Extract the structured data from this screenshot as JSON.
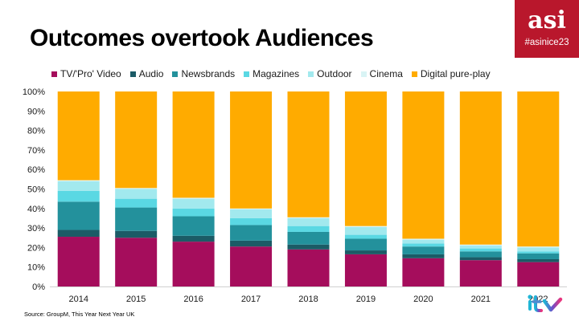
{
  "slide": {
    "title": "Outcomes overtook Audiences",
    "source": "Source: GroupM, This Year Next Year UK"
  },
  "brand": {
    "logo_text": "asi",
    "hashtag": "#asinice23",
    "color": "#b9172c",
    "partner_logo": "itv-logo"
  },
  "chart_data": {
    "type": "bar",
    "stacked": true,
    "title": "",
    "xlabel": "",
    "ylabel": "",
    "ylim": [
      0,
      100
    ],
    "y_tick_labels": [
      "0%",
      "10%",
      "20%",
      "30%",
      "40%",
      "50%",
      "60%",
      "70%",
      "80%",
      "90%",
      "100%"
    ],
    "legend_position": "top",
    "grid": false,
    "categories": [
      "2014",
      "2015",
      "2016",
      "2017",
      "2018",
      "2019",
      "2020",
      "2021",
      "2022"
    ],
    "series": [
      {
        "name": "TV/'Pro' Video",
        "color": "#a50d5c",
        "values": [
          25.5,
          25,
          23,
          20.5,
          19,
          16.5,
          14.5,
          13.5,
          12.5
        ]
      },
      {
        "name": "Audio",
        "color": "#1b5b66",
        "values": [
          3.5,
          3.5,
          3,
          3,
          2.5,
          2,
          2,
          1.5,
          1.5
        ]
      },
      {
        "name": "Newsbrands",
        "color": "#23919c",
        "values": [
          14.5,
          12,
          10,
          8,
          6.5,
          6,
          4,
          3,
          3
        ]
      },
      {
        "name": "Magazines",
        "color": "#5ad8e3",
        "values": [
          5.5,
          4.5,
          4,
          3.5,
          3,
          2,
          1.5,
          1.5,
          1
        ]
      },
      {
        "name": "Outdoor",
        "color": "#a2e9ee",
        "values": [
          5,
          5,
          5,
          4.5,
          4,
          4,
          2,
          1.5,
          2
        ]
      },
      {
        "name": "Cinema",
        "color": "#d9f4f5",
        "values": [
          0.5,
          0.5,
          0.5,
          0.5,
          0.5,
          0.5,
          0.5,
          0.5,
          0.5
        ]
      },
      {
        "name": "Digital pure-play",
        "color": "#ffab00",
        "values": [
          45.5,
          49.5,
          54.5,
          60,
          64.5,
          69,
          75.5,
          78.5,
          79.5
        ]
      }
    ]
  }
}
